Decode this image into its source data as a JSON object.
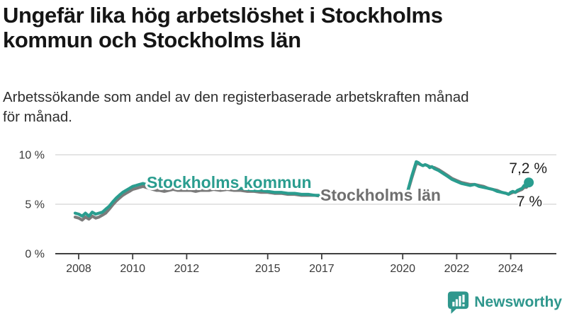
{
  "title": {
    "line1": "Ungefär lika hög arbetslöshet i Stockholms",
    "line2": "kommun och Stockholms län"
  },
  "subtitle": {
    "line1": "Arbetssökande som andel av den registerbaserade arbetskraften månad",
    "line2": "för månad."
  },
  "logo": {
    "text": "Newsworthy"
  },
  "colors": {
    "kommun": "#2a9d8f",
    "lan": "#7b7b7b",
    "lan_label": "#6f6f6f",
    "teal_logo": "#2f978d",
    "grid": "#dcdcdc",
    "axis": "#3f3f3f",
    "axis_text": "#3a3a3a",
    "value_label": "#222222"
  },
  "chart_data": {
    "type": "line",
    "x_unit": "decimal_year",
    "xlim": [
      2007.6,
      2025.2
    ],
    "ylim": [
      0,
      10.7
    ],
    "grid": "horizontal",
    "legend_position": "inline-labels",
    "y_ticks": [
      {
        "value": 0,
        "label": "0 %"
      },
      {
        "value": 5,
        "label": "5 %"
      },
      {
        "value": 10,
        "label": "10 %"
      }
    ],
    "x_ticks": [
      {
        "value": 2008,
        "label": "2008"
      },
      {
        "value": 2010,
        "label": "2010"
      },
      {
        "value": 2012,
        "label": "2012"
      },
      {
        "value": 2015,
        "label": "2015"
      },
      {
        "value": 2017,
        "label": "2017"
      },
      {
        "value": 2020,
        "label": "2020"
      },
      {
        "value": 2022,
        "label": "2022"
      },
      {
        "value": 2024,
        "label": "2024"
      }
    ],
    "series": [
      {
        "id": "lan",
        "name": "Stockholms län",
        "inline_label": "Stockholms län",
        "end_label": "7 %",
        "end_value": 7.0,
        "color": "#7b7b7b",
        "end_dot": false,
        "points": [
          [
            2007.87,
            3.7
          ],
          [
            2008.0,
            3.6
          ],
          [
            2008.13,
            3.4
          ],
          [
            2008.25,
            3.7
          ],
          [
            2008.38,
            3.5
          ],
          [
            2008.5,
            3.8
          ],
          [
            2008.63,
            3.6
          ],
          [
            2008.75,
            3.7
          ],
          [
            2008.88,
            3.9
          ],
          [
            2009.0,
            4.1
          ],
          [
            2009.13,
            4.5
          ],
          [
            2009.25,
            4.9
          ],
          [
            2009.38,
            5.3
          ],
          [
            2009.5,
            5.6
          ],
          [
            2009.63,
            5.9
          ],
          [
            2009.75,
            6.1
          ],
          [
            2009.88,
            6.3
          ],
          [
            2010.0,
            6.5
          ],
          [
            2010.13,
            6.6
          ],
          [
            2010.25,
            6.7
          ],
          [
            2010.38,
            6.8
          ],
          [
            2010.5,
            6.7
          ],
          [
            2010.63,
            6.6
          ],
          [
            2010.75,
            6.5
          ],
          [
            2010.88,
            6.4
          ],
          [
            2011.0,
            6.4
          ],
          [
            2011.17,
            6.3
          ],
          [
            2011.33,
            6.4
          ],
          [
            2011.5,
            6.5
          ],
          [
            2011.67,
            6.4
          ],
          [
            2011.83,
            6.4
          ],
          [
            2012.0,
            6.4
          ],
          [
            2012.17,
            6.4
          ],
          [
            2012.33,
            6.3
          ],
          [
            2012.5,
            6.4
          ],
          [
            2012.67,
            6.4
          ],
          [
            2012.83,
            6.4
          ],
          [
            2013.0,
            6.5
          ],
          [
            2013.25,
            6.4
          ],
          [
            2013.5,
            6.5
          ],
          [
            2013.75,
            6.4
          ],
          [
            2014.0,
            6.4
          ],
          [
            2014.25,
            6.3
          ],
          [
            2014.5,
            6.3
          ],
          [
            2014.75,
            6.2
          ],
          [
            2015.0,
            6.2
          ],
          [
            2015.25,
            6.1
          ],
          [
            2015.5,
            6.1
          ],
          [
            2015.75,
            6.0
          ],
          [
            2016.0,
            6.0
          ],
          [
            2016.25,
            5.9
          ],
          [
            2016.5,
            5.9
          ],
          [
            2016.75,
            5.9
          ],
          [
            2017.0,
            5.8
          ],
          [
            2017.25,
            5.8
          ],
          [
            2017.5,
            5.7
          ],
          [
            2017.75,
            5.7
          ],
          [
            2018.0,
            5.6
          ],
          [
            2018.25,
            5.6
          ],
          [
            2018.5,
            5.5
          ],
          [
            2018.75,
            5.6
          ],
          [
            2019.0,
            5.6
          ],
          [
            2019.25,
            5.7
          ],
          [
            2019.5,
            5.7
          ],
          [
            2019.75,
            5.8
          ],
          [
            2020.0,
            5.9
          ],
          [
            2020.17,
            6.1
          ],
          [
            2020.33,
            7.6
          ],
          [
            2020.5,
            9.1
          ],
          [
            2020.58,
            9.1
          ],
          [
            2020.67,
            9.0
          ],
          [
            2020.75,
            8.9
          ],
          [
            2020.83,
            9.0
          ],
          [
            2020.92,
            8.9
          ],
          [
            2021.0,
            8.8
          ],
          [
            2021.17,
            8.7
          ],
          [
            2021.33,
            8.5
          ],
          [
            2021.5,
            8.2
          ],
          [
            2021.67,
            7.9
          ],
          [
            2021.83,
            7.6
          ],
          [
            2022.0,
            7.4
          ],
          [
            2022.17,
            7.2
          ],
          [
            2022.33,
            7.1
          ],
          [
            2022.5,
            7.0
          ],
          [
            2022.67,
            7.0
          ],
          [
            2022.83,
            6.9
          ],
          [
            2023.0,
            6.8
          ],
          [
            2023.17,
            6.6
          ],
          [
            2023.33,
            6.5
          ],
          [
            2023.5,
            6.4
          ],
          [
            2023.67,
            6.2
          ],
          [
            2023.83,
            6.1
          ],
          [
            2023.92,
            6.0
          ],
          [
            2024.0,
            6.1
          ],
          [
            2024.08,
            6.2
          ],
          [
            2024.17,
            6.2
          ],
          [
            2024.25,
            6.3
          ],
          [
            2024.33,
            6.4
          ],
          [
            2024.42,
            6.5
          ],
          [
            2024.5,
            6.7
          ],
          [
            2024.58,
            6.7
          ],
          [
            2024.67,
            7.0
          ]
        ]
      },
      {
        "id": "kommun",
        "name": "Stockholms kommun",
        "inline_label": "Stockholms kommun",
        "end_label": "7,2 %",
        "end_value": 7.2,
        "color": "#2a9d8f",
        "end_dot": true,
        "points": [
          [
            2007.87,
            4.1
          ],
          [
            2008.0,
            4.0
          ],
          [
            2008.13,
            3.8
          ],
          [
            2008.25,
            4.1
          ],
          [
            2008.38,
            3.8
          ],
          [
            2008.5,
            4.2
          ],
          [
            2008.63,
            4.0
          ],
          [
            2008.75,
            4.1
          ],
          [
            2008.88,
            4.2
          ],
          [
            2009.0,
            4.5
          ],
          [
            2009.13,
            4.8
          ],
          [
            2009.25,
            5.2
          ],
          [
            2009.38,
            5.6
          ],
          [
            2009.5,
            5.9
          ],
          [
            2009.63,
            6.2
          ],
          [
            2009.75,
            6.4
          ],
          [
            2009.88,
            6.6
          ],
          [
            2010.0,
            6.8
          ],
          [
            2010.13,
            6.9
          ],
          [
            2010.25,
            7.0
          ],
          [
            2010.38,
            7.1
          ],
          [
            2010.5,
            7.0
          ],
          [
            2010.63,
            6.9
          ],
          [
            2010.75,
            6.8
          ],
          [
            2010.88,
            6.7
          ],
          [
            2011.0,
            6.7
          ],
          [
            2011.17,
            6.6
          ],
          [
            2011.33,
            6.7
          ],
          [
            2011.5,
            6.8
          ],
          [
            2011.67,
            6.6
          ],
          [
            2011.83,
            6.7
          ],
          [
            2012.0,
            6.6
          ],
          [
            2012.17,
            6.7
          ],
          [
            2012.33,
            6.6
          ],
          [
            2012.5,
            6.7
          ],
          [
            2012.67,
            6.6
          ],
          [
            2012.83,
            6.7
          ],
          [
            2013.0,
            6.8
          ],
          [
            2013.25,
            6.7
          ],
          [
            2013.5,
            6.8
          ],
          [
            2013.75,
            6.6
          ],
          [
            2014.0,
            6.6
          ],
          [
            2014.25,
            6.5
          ],
          [
            2014.5,
            6.4
          ],
          [
            2014.75,
            6.4
          ],
          [
            2015.0,
            6.3
          ],
          [
            2015.25,
            6.2
          ],
          [
            2015.5,
            6.2
          ],
          [
            2015.75,
            6.1
          ],
          [
            2016.0,
            6.1
          ],
          [
            2016.25,
            6.0
          ],
          [
            2016.5,
            6.0
          ],
          [
            2016.75,
            5.9
          ],
          [
            2017.0,
            5.9
          ],
          [
            2017.25,
            5.8
          ],
          [
            2017.5,
            5.8
          ],
          [
            2017.75,
            5.7
          ],
          [
            2018.0,
            5.7
          ],
          [
            2018.25,
            5.6
          ],
          [
            2018.5,
            5.6
          ],
          [
            2018.75,
            5.7
          ],
          [
            2019.0,
            5.7
          ],
          [
            2019.25,
            5.8
          ],
          [
            2019.5,
            5.8
          ],
          [
            2019.75,
            5.9
          ],
          [
            2020.0,
            6.0
          ],
          [
            2020.17,
            6.2
          ],
          [
            2020.33,
            7.8
          ],
          [
            2020.5,
            9.3
          ],
          [
            2020.58,
            9.2
          ],
          [
            2020.67,
            9.0
          ],
          [
            2020.75,
            8.9
          ],
          [
            2020.83,
            9.0
          ],
          [
            2020.92,
            8.9
          ],
          [
            2021.0,
            8.7
          ],
          [
            2021.08,
            8.8
          ],
          [
            2021.17,
            8.6
          ],
          [
            2021.33,
            8.4
          ],
          [
            2021.5,
            8.1
          ],
          [
            2021.67,
            7.8
          ],
          [
            2021.83,
            7.5
          ],
          [
            2022.0,
            7.3
          ],
          [
            2022.17,
            7.1
          ],
          [
            2022.33,
            7.0
          ],
          [
            2022.5,
            6.9
          ],
          [
            2022.67,
            7.0
          ],
          [
            2022.83,
            6.8
          ],
          [
            2023.0,
            6.7
          ],
          [
            2023.17,
            6.6
          ],
          [
            2023.33,
            6.5
          ],
          [
            2023.5,
            6.3
          ],
          [
            2023.67,
            6.2
          ],
          [
            2023.83,
            6.1
          ],
          [
            2023.92,
            6.0
          ],
          [
            2024.0,
            6.2
          ],
          [
            2024.08,
            6.3
          ],
          [
            2024.17,
            6.2
          ],
          [
            2024.25,
            6.4
          ],
          [
            2024.33,
            6.5
          ],
          [
            2024.42,
            6.6
          ],
          [
            2024.5,
            6.9
          ],
          [
            2024.58,
            6.8
          ],
          [
            2024.67,
            7.2
          ]
        ]
      }
    ]
  }
}
